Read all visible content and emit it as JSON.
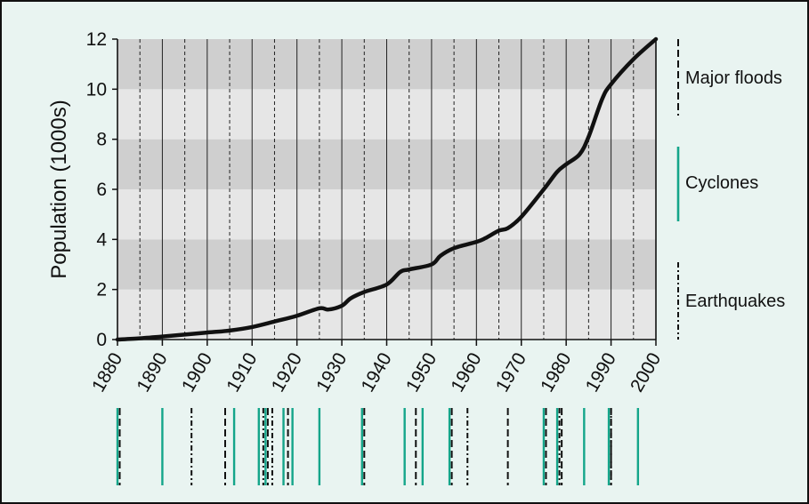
{
  "chart_data": {
    "type": "line",
    "ylabel": "Population (1000s)",
    "xlim": [
      1880,
      2000
    ],
    "ylim": [
      0,
      12
    ],
    "y_ticks": [
      "0",
      "2",
      "4",
      "6",
      "8",
      "10",
      "12"
    ],
    "x_ticks": [
      "1880",
      "1890",
      "1900",
      "1910",
      "1920",
      "1930",
      "1940",
      "1950",
      "1960",
      "1970",
      "1980",
      "1990",
      "2000"
    ],
    "grid": "horizontal bands and vertical lines",
    "series": [
      {
        "x": [
          1880,
          1885,
          1890,
          1895,
          1900,
          1905,
          1910,
          1915,
          1920,
          1925,
          1927,
          1930,
          1932,
          1935,
          1940,
          1943,
          1945,
          1950,
          1952,
          1955,
          1960,
          1962,
          1965,
          1967,
          1970,
          1975,
          1978,
          1980,
          1983,
          1985,
          1988,
          1990,
          1995,
          2000
        ],
        "y": [
          0,
          0.05,
          0.12,
          0.2,
          0.28,
          0.36,
          0.5,
          0.72,
          0.95,
          1.25,
          1.2,
          1.35,
          1.65,
          1.9,
          2.2,
          2.7,
          2.8,
          3.0,
          3.35,
          3.65,
          3.9,
          4.05,
          4.35,
          4.45,
          4.9,
          6.0,
          6.7,
          7.0,
          7.4,
          8.1,
          9.6,
          10.2,
          11.2,
          12.0
        ],
        "color": "#111111"
      }
    ],
    "event_years": {
      "major_floods": [
        1880.5,
        1904,
        1913.5,
        1918,
        1935,
        1946.5,
        1954.5,
        1967,
        1975.5,
        1979,
        1990
      ],
      "cyclones": [
        1880,
        1890,
        1906,
        1911.5,
        1913,
        1917,
        1919,
        1925,
        1934.5,
        1944,
        1948,
        1954,
        1975,
        1978,
        1984,
        1989.5,
        1996
      ],
      "earthquakes": [
        1896.5,
        1912.5,
        1914.5,
        1958,
        1978.5,
        1990
      ]
    },
    "legend": [
      {
        "label": "Major floods",
        "style": "dashed",
        "color": "#111111"
      },
      {
        "label": "Cyclones",
        "style": "solid",
        "color": "#14a58a"
      },
      {
        "label": "Earthquakes",
        "style": "dash-dot",
        "color": "#111111"
      }
    ]
  }
}
